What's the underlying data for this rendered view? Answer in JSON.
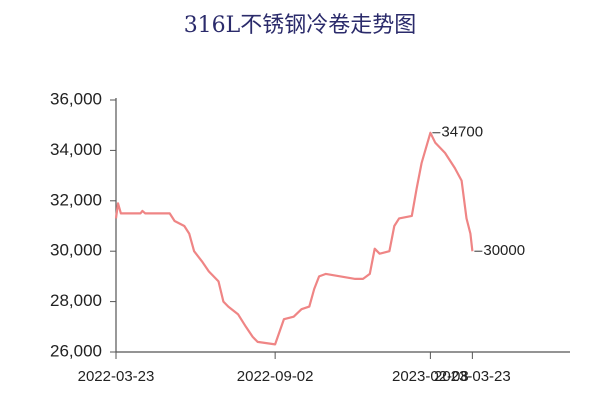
{
  "chart_data": {
    "type": "line",
    "title": "316L不锈钢冷卷走势图",
    "x": [
      "2022-03-23",
      "2022-03-25",
      "2022-03-28",
      "2022-04-17",
      "2022-04-19",
      "2022-04-22",
      "2022-05-17",
      "2022-05-22",
      "2022-06-01",
      "2022-06-06",
      "2022-06-11",
      "2022-06-19",
      "2022-06-26",
      "2022-07-06",
      "2022-07-11",
      "2022-07-16",
      "2022-07-26",
      "2022-08-03",
      "2022-08-10",
      "2022-08-15",
      "2022-09-02",
      "2022-09-11",
      "2022-09-21",
      "2022-09-29",
      "2022-10-07",
      "2022-10-12",
      "2022-10-17",
      "2022-10-24",
      "2022-11-08",
      "2022-11-23",
      "2022-12-01",
      "2022-12-08",
      "2022-12-13",
      "2022-12-18",
      "2022-12-28",
      "2023-01-02",
      "2023-01-07",
      "2023-01-20",
      "2023-01-25",
      "2023-01-30",
      "2023-02-08",
      "2023-02-13",
      "2023-02-23",
      "2023-03-05",
      "2023-03-12",
      "2023-03-17",
      "2023-03-21",
      "2023-03-23"
    ],
    "series": [
      {
        "color": "#ef8585",
        "values": [
          31300,
          31900,
          31500,
          31500,
          31600,
          31500,
          31500,
          31200,
          31000,
          30700,
          30000,
          29600,
          29200,
          28800,
          28000,
          27800,
          27500,
          27000,
          26600,
          26400,
          26300,
          27300,
          27400,
          27700,
          27800,
          28500,
          29000,
          29100,
          29000,
          28900,
          28900,
          29100,
          30100,
          29900,
          30000,
          31000,
          31300,
          31400,
          32500,
          33500,
          34700,
          34300,
          33900,
          33300,
          32800,
          31300,
          30700,
          30000
        ]
      }
    ],
    "xlim": [
      "2022-03-23",
      "2023-07-01"
    ],
    "xticks": [
      "2022-03-23",
      "2022-09-02",
      "2023-02-08",
      "2023-03-23"
    ],
    "ylim": [
      26000,
      36000
    ],
    "yticks": [
      {
        "value": 26000,
        "label": "26,000"
      },
      {
        "value": 28000,
        "label": "28,000"
      },
      {
        "value": 30000,
        "label": "30,000"
      },
      {
        "value": 32000,
        "label": "32,000"
      },
      {
        "value": 34000,
        "label": "34,000"
      },
      {
        "value": 36000,
        "label": "36,000"
      }
    ],
    "annotations": [
      {
        "x": "2023-02-08",
        "value": 34700
      },
      {
        "x": "2023-03-23",
        "value": 30000
      }
    ]
  }
}
